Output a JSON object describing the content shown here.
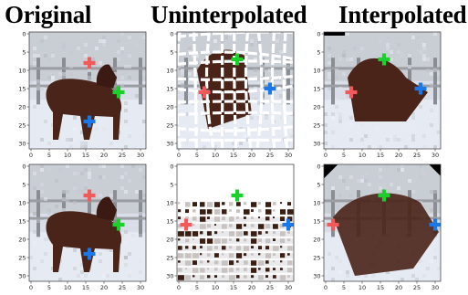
{
  "titles": {
    "original": "Original",
    "uninterpolated": "Uninterpolated",
    "interpolated": "Interpolated"
  },
  "axes": {
    "x_ticks": [
      "0",
      "5",
      "10",
      "15",
      "20",
      "25",
      "30"
    ],
    "y_ticks": [
      "0",
      "5",
      "10",
      "15",
      "20",
      "25",
      "30"
    ],
    "range": [
      0,
      31
    ]
  },
  "keypoint_colors": {
    "red": "#f25a5a",
    "green": "#1bd02a",
    "blue": "#1a78e8"
  },
  "rows": [
    {
      "original": {
        "red": [
          16,
          8
        ],
        "green": [
          24,
          16
        ],
        "blue": [
          16,
          24
        ]
      },
      "uninterpolated": {
        "red": [
          7,
          16
        ],
        "green": [
          16,
          7
        ],
        "blue": [
          25,
          15
        ]
      },
      "interpolated": {
        "red": [
          7,
          16
        ],
        "green": [
          16,
          7
        ],
        "blue": [
          26,
          15
        ]
      }
    },
    {
      "original": {
        "red": [
          16,
          8
        ],
        "green": [
          24,
          16
        ],
        "blue": [
          16,
          24
        ]
      },
      "uninterpolated": {
        "red": [
          2,
          16
        ],
        "green": [
          16,
          8
        ],
        "blue": [
          30,
          16
        ]
      },
      "interpolated": {
        "red": [
          2,
          16
        ],
        "green": [
          16,
          8
        ],
        "blue": [
          30,
          16
        ]
      }
    }
  ]
}
